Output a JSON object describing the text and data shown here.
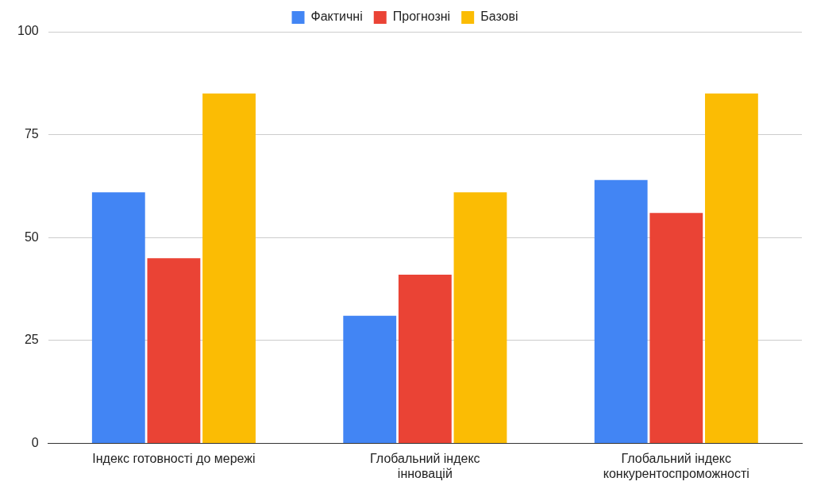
{
  "chart_data": {
    "type": "bar",
    "categories": [
      "Індекс готовності до мережі",
      "Глобальний індекс інновацій",
      "Глобальний індекс конкурентоспроможності"
    ],
    "series": [
      {
        "name": "Фактичні",
        "color": "#4285f4",
        "values": [
          61,
          31,
          64
        ]
      },
      {
        "name": "Прогнозні",
        "color": "#ea4335",
        "values": [
          45,
          41,
          56
        ]
      },
      {
        "name": "Базові",
        "color": "#fbbc04",
        "values": [
          85,
          61,
          85
        ]
      }
    ],
    "ylim": [
      0,
      100
    ],
    "yticks": [
      0,
      25,
      50,
      75,
      100
    ],
    "grid": "y",
    "legend": "top"
  }
}
